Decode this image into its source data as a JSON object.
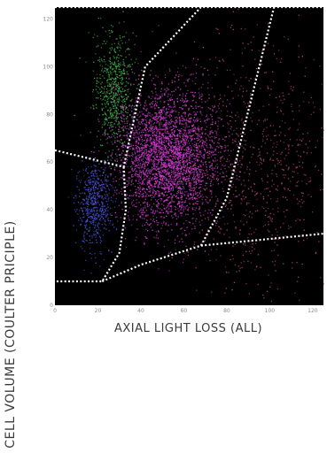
{
  "chart_data": {
    "type": "scatter",
    "title": "",
    "xlabel": "AXIAL LIGHT LOSS (ALL)",
    "ylabel": "CELL VOLUME (COULTER PRICIPLE)",
    "xlim": [
      0,
      125
    ],
    "ylim": [
      0,
      125
    ],
    "x_ticks": [
      "0",
      "20",
      "40",
      "60",
      "80",
      "100",
      "120"
    ],
    "y_ticks": [
      "0",
      "20",
      "40",
      "60",
      "80",
      "100",
      "120"
    ],
    "grid": false,
    "legend": "none",
    "background": "#000000",
    "clusters": [
      {
        "name": "green",
        "color": "#3fae48",
        "center": [
          27,
          90
        ],
        "spread": [
          4.5,
          12
        ],
        "count": 650
      },
      {
        "name": "blue",
        "color": "#4452d6",
        "center": [
          18,
          42
        ],
        "spread": [
          4,
          9
        ],
        "count": 550
      },
      {
        "name": "magenta",
        "color": "#d23bd3",
        "center": [
          52,
          62
        ],
        "spread": [
          12,
          14
        ],
        "count": 3200
      },
      {
        "name": "pink",
        "color": "#b8436a",
        "center": [
          90,
          60
        ],
        "spread": [
          20,
          25
        ],
        "count": 900
      }
    ],
    "gates": [
      {
        "line": [
          [
            0,
            65
          ],
          [
            32,
            58
          ],
          [
            42,
            100
          ],
          [
            68,
            125
          ]
        ]
      },
      {
        "line": [
          [
            32,
            58
          ],
          [
            33,
            40
          ],
          [
            30,
            22
          ],
          [
            22,
            10
          ],
          [
            0,
            10
          ]
        ]
      },
      {
        "line": [
          [
            22,
            10
          ],
          [
            40,
            17
          ],
          [
            68,
            25
          ],
          [
            125,
            30
          ]
        ]
      },
      {
        "line": [
          [
            68,
            25
          ],
          [
            80,
            45
          ],
          [
            102,
            125
          ]
        ]
      },
      {
        "line": [
          [
            0,
            125
          ],
          [
            125,
            125
          ]
        ]
      }
    ]
  }
}
